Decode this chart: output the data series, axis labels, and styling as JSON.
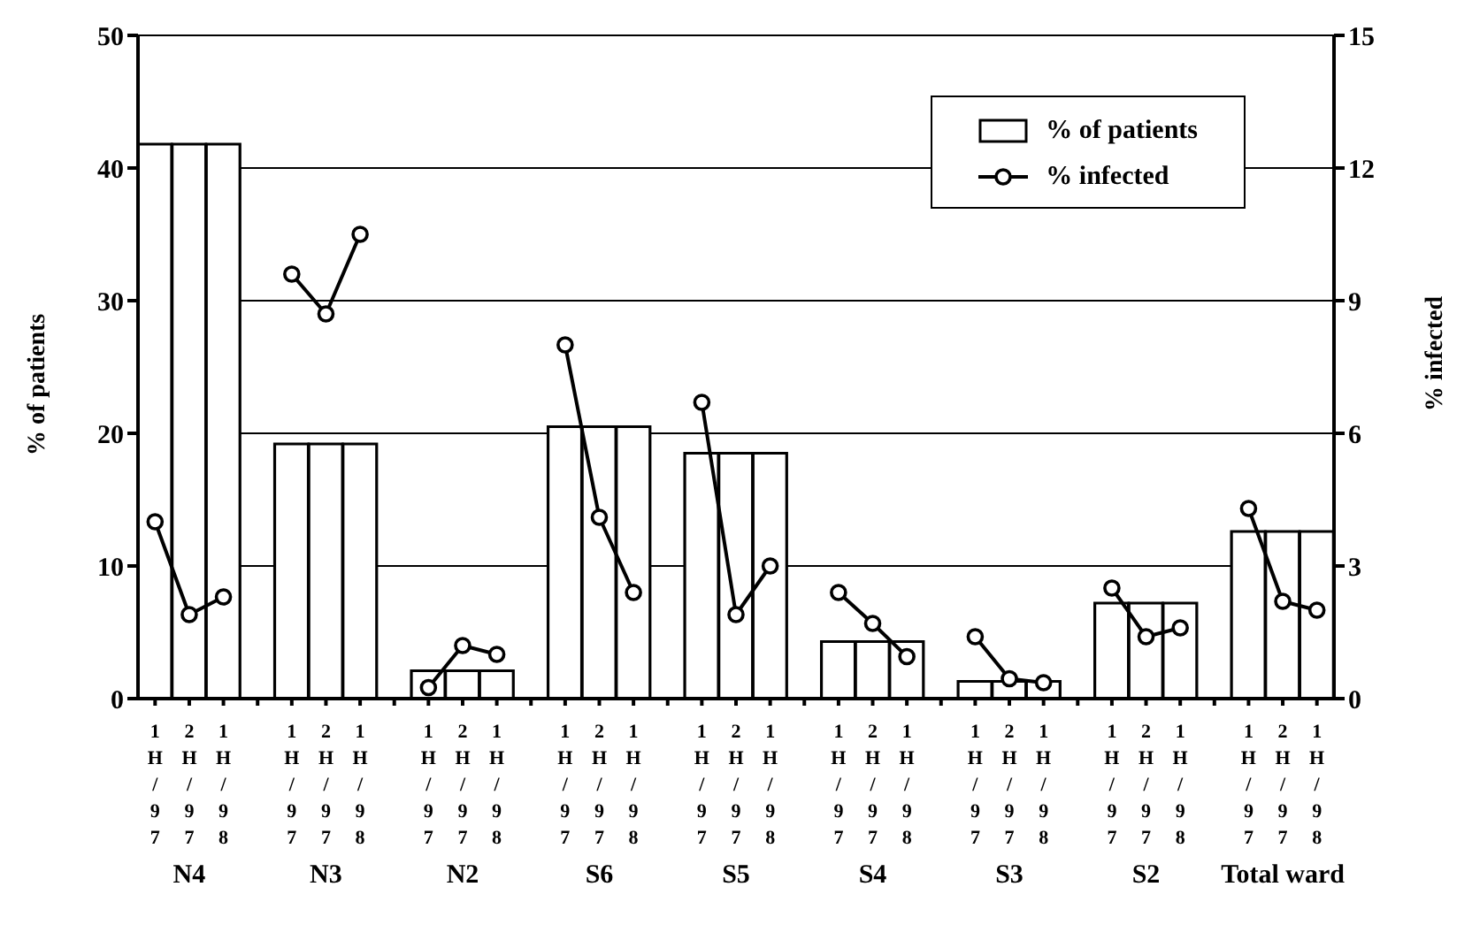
{
  "chart_data": {
    "type": "bar",
    "ylabel": "% of patients",
    "y2label": "% infected",
    "categories": [
      "1H/97",
      "2H/97",
      "1H/98",
      null,
      "1H/97",
      "2H/97",
      "1H/98",
      null,
      "1H/97",
      "2H/97",
      "1H/98",
      null,
      "1H/97",
      "2H/97",
      "1H/98",
      null,
      "1H/97",
      "2H/97",
      "1H/98",
      null,
      "1H/97",
      "2H/97",
      "1H/98",
      null,
      "1H/97",
      "2H/97",
      "1H/98",
      null,
      "1H/97",
      "2H/97",
      "1H/98",
      null,
      "1H/97",
      "2H/97",
      "1H/98"
    ],
    "series": [
      {
        "name": "% of patients",
        "color": "#ffffff",
        "values": [
          41.8,
          41.8,
          41.8,
          null,
          19.2,
          19.2,
          19.2,
          null,
          2.1,
          2.1,
          2.1,
          null,
          20.5,
          20.5,
          20.5,
          null,
          18.5,
          18.5,
          18.5,
          null,
          4.3,
          4.3,
          4.3,
          null,
          1.3,
          1.3,
          1.3,
          null,
          7.2,
          7.2,
          7.2,
          null,
          12.6,
          12.6,
          12.6
        ]
      },
      {
        "name": "% infected",
        "type": "line",
        "axis": "y2",
        "color": "#000000",
        "values": [
          4.0,
          1.9,
          2.3,
          null,
          9.6,
          8.7,
          10.5,
          null,
          0.25,
          1.2,
          1.0,
          null,
          8.0,
          4.1,
          2.4,
          null,
          6.7,
          1.9,
          3.0,
          null,
          2.4,
          1.7,
          0.95,
          null,
          1.4,
          0.45,
          0.36,
          null,
          2.5,
          1.4,
          1.6,
          null,
          4.3,
          2.2,
          2.0
        ]
      }
    ],
    "ylim": [
      0,
      50
    ],
    "yticks": [
      0,
      10,
      20,
      30,
      40,
      50
    ],
    "y2lim": [
      0,
      15
    ],
    "y2ticks": [
      0,
      3,
      6,
      9,
      12,
      15
    ],
    "grid": "y",
    "legend": "top right",
    "marker": "circle",
    "annotations": [
      "N4",
      "N3",
      "N2",
      "S6",
      "S5",
      "S4",
      "S3",
      "S2",
      "Total ward"
    ]
  }
}
